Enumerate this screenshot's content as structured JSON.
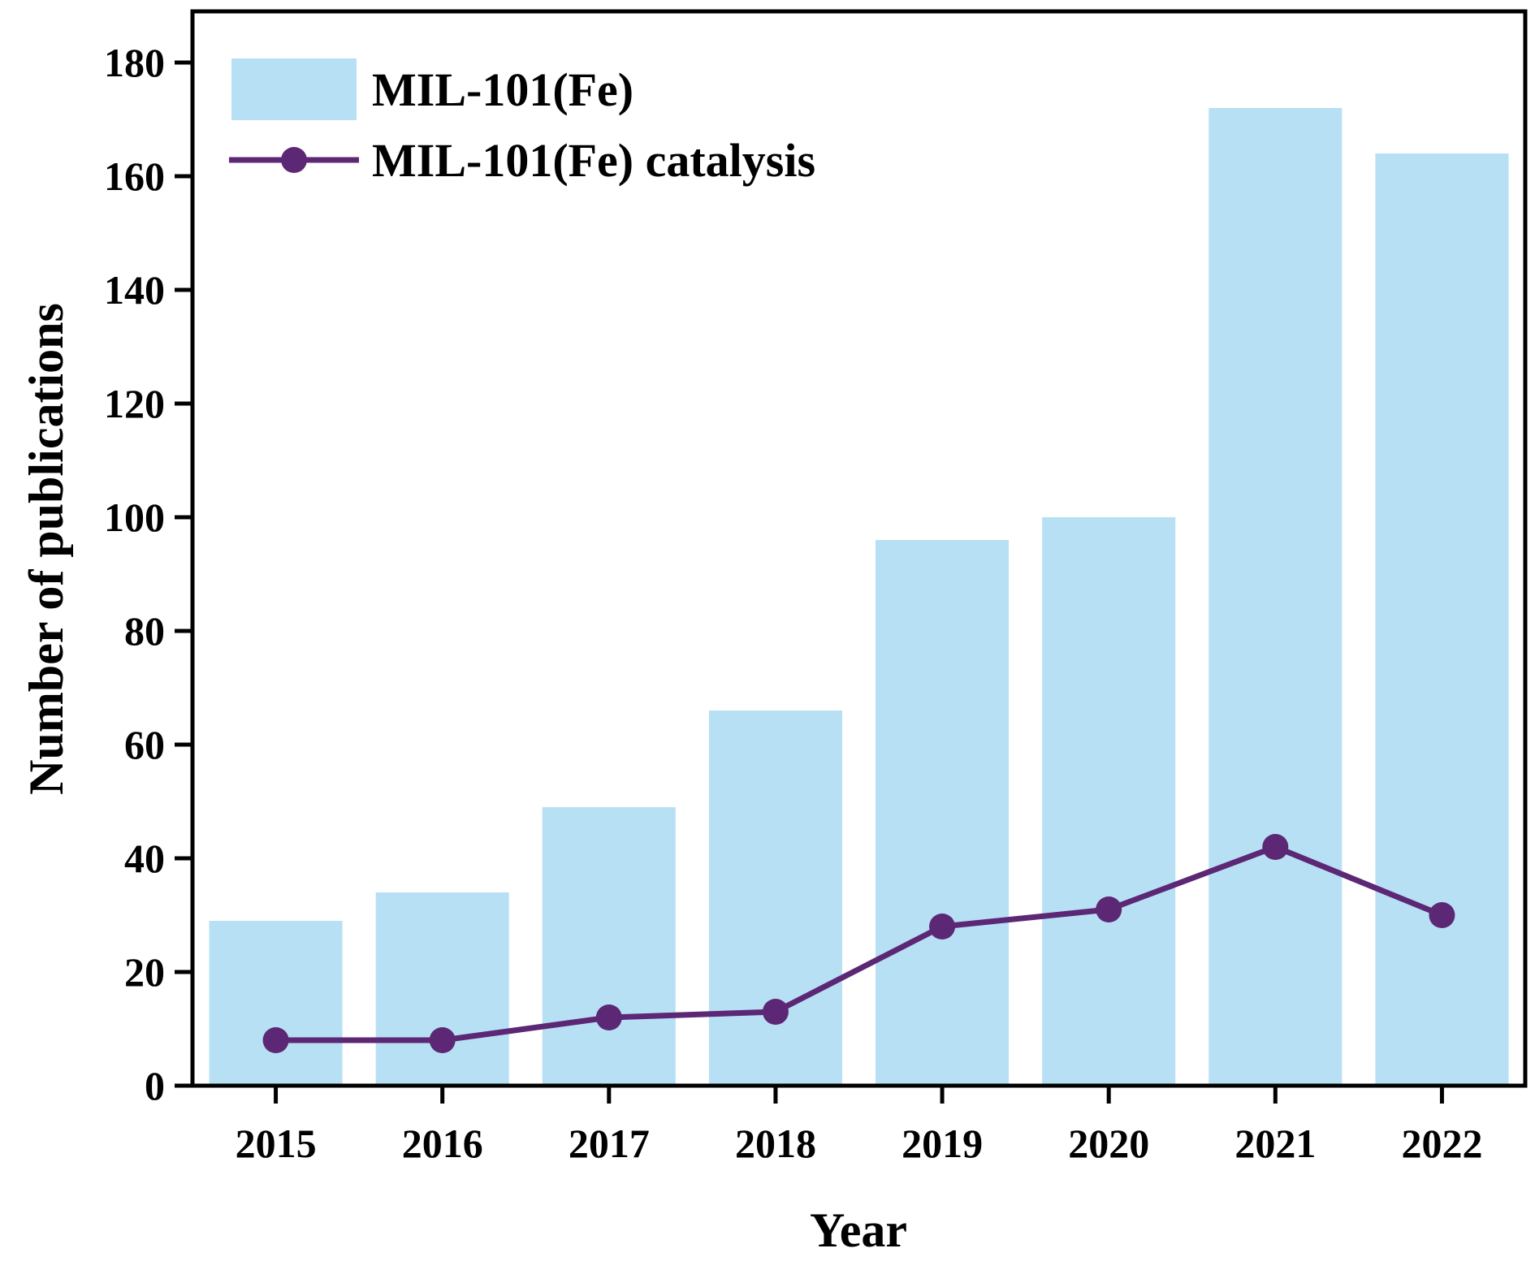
{
  "chart_data": {
    "type": "bar",
    "categories": [
      "2015",
      "2016",
      "2017",
      "2018",
      "2019",
      "2020",
      "2021",
      "2022"
    ],
    "series": [
      {
        "name": "MIL-101(Fe)",
        "type": "bar",
        "values": [
          29,
          34,
          49,
          66,
          96,
          100,
          172,
          164
        ]
      },
      {
        "name": "MIL-101(Fe) catalysis",
        "type": "line",
        "values": [
          8,
          8,
          12,
          13,
          28,
          31,
          42,
          30
        ]
      }
    ],
    "xlabel": "Year",
    "ylabel": "Number of publications",
    "ylim": [
      0,
      189
    ],
    "yticks": [
      0,
      20,
      40,
      60,
      80,
      100,
      120,
      140,
      160,
      180
    ],
    "grid": false,
    "legend": "top-left",
    "colors": {
      "bar": "#b8e0f4",
      "line": "#5c2774",
      "axis": "#000000"
    }
  }
}
